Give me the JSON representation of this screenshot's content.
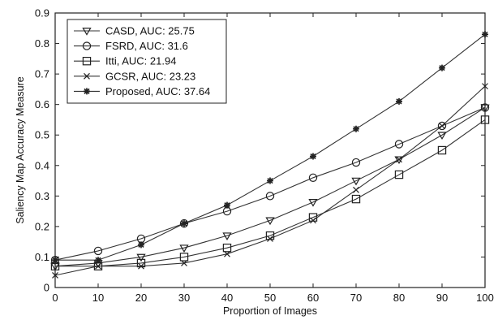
{
  "chart_data": {
    "type": "line",
    "xlabel": "Proportion of Images",
    "ylabel": "Saliency Map Accuracy Measure",
    "xlim": [
      0,
      100
    ],
    "ylim": [
      0,
      0.9
    ],
    "xticks": [
      "0",
      "10",
      "20",
      "30",
      "40",
      "50",
      "60",
      "70",
      "80",
      "90",
      "100"
    ],
    "yticks": [
      "0",
      "0.1",
      "0.2",
      "0.3",
      "0.4",
      "0.5",
      "0.6",
      "0.7",
      "0.8",
      "0.9"
    ],
    "grid": false,
    "legend_position": "top-left",
    "x": [
      0,
      10,
      20,
      30,
      40,
      50,
      60,
      70,
      80,
      90,
      100
    ],
    "series": [
      {
        "name": "CASD, AUC: 25.75",
        "marker": "triangle-down",
        "values": [
          0.07,
          0.08,
          0.1,
          0.13,
          0.17,
          0.22,
          0.28,
          0.35,
          0.42,
          0.5,
          0.59
        ]
      },
      {
        "name": "FSRD, AUC: 31.6",
        "marker": "circle",
        "values": [
          0.09,
          0.12,
          0.16,
          0.21,
          0.25,
          0.3,
          0.36,
          0.41,
          0.47,
          0.53,
          0.59
        ]
      },
      {
        "name": "Itti, AUC: 21.94",
        "marker": "square",
        "values": [
          0.07,
          0.07,
          0.08,
          0.1,
          0.13,
          0.17,
          0.23,
          0.29,
          0.37,
          0.45,
          0.55
        ]
      },
      {
        "name": "GCSR, AUC: 23.23",
        "marker": "x",
        "values": [
          0.04,
          0.07,
          0.07,
          0.08,
          0.11,
          0.16,
          0.22,
          0.32,
          0.42,
          0.53,
          0.66
        ]
      },
      {
        "name": "Proposed, AUC: 37.64",
        "marker": "star",
        "values": [
          0.09,
          0.09,
          0.14,
          0.21,
          0.27,
          0.35,
          0.43,
          0.52,
          0.61,
          0.72,
          0.83
        ]
      }
    ]
  }
}
